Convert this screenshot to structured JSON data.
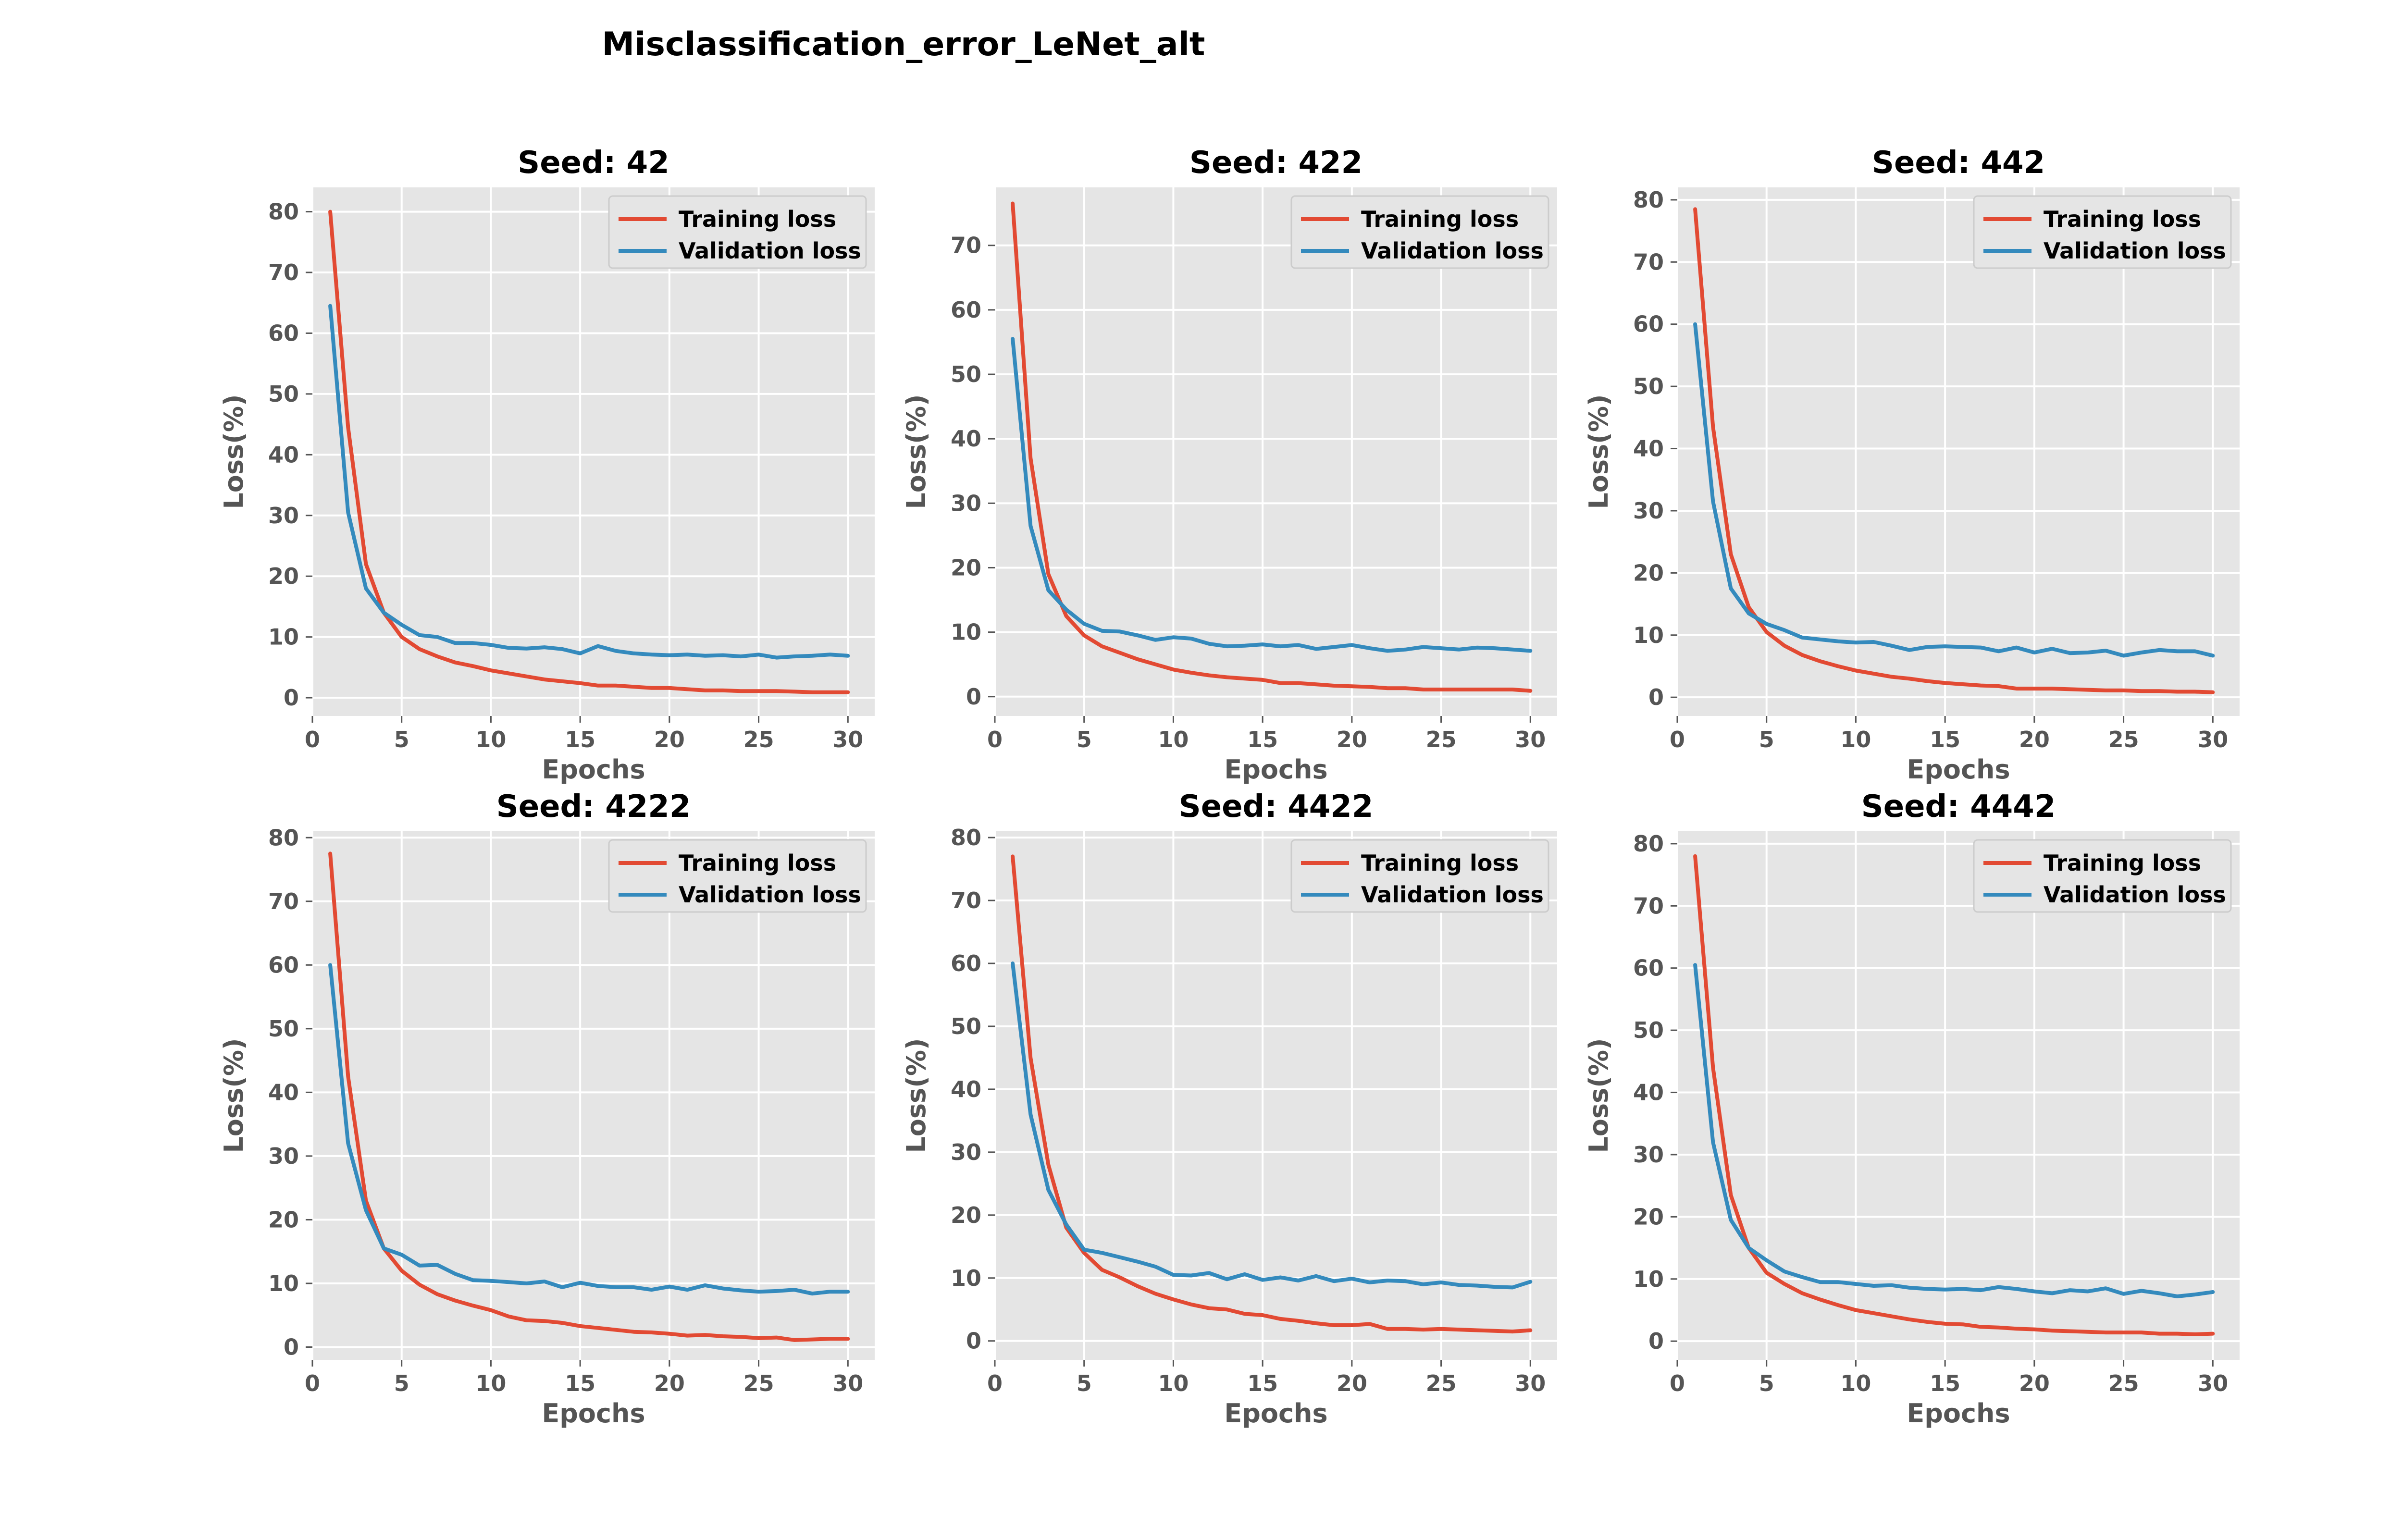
{
  "figure": {
    "title": "Misclassification_error_LeNet_alt"
  },
  "colors": {
    "training": "#E24A33",
    "validation": "#348ABD",
    "plot_background": "#E5E5E5",
    "grid": "#FFFFFF"
  },
  "chart_data": [
    {
      "type": "line",
      "title": "Seed: 42",
      "xlabel": "Epochs",
      "ylabel": "Loss(%)",
      "xlim": [
        0,
        31.5
      ],
      "ylim": [
        -3,
        84
      ],
      "xticks": [
        0,
        5,
        10,
        15,
        20,
        25,
        30
      ],
      "yticks": [
        0,
        10,
        20,
        30,
        40,
        50,
        60,
        70,
        80
      ],
      "grid": true,
      "legend_position": "top-right",
      "x": [
        1,
        2,
        3,
        4,
        5,
        6,
        7,
        8,
        9,
        10,
        11,
        12,
        13,
        14,
        15,
        16,
        17,
        18,
        19,
        20,
        21,
        22,
        23,
        24,
        25,
        26,
        27,
        28,
        29,
        30
      ],
      "series": [
        {
          "name": "Training loss",
          "values": [
            80,
            44.5,
            22,
            14,
            10,
            8,
            6.8,
            5.8,
            5.2,
            4.5,
            4,
            3.5,
            3,
            2.7,
            2.4,
            2,
            2,
            1.8,
            1.6,
            1.6,
            1.4,
            1.2,
            1.2,
            1.1,
            1.1,
            1.1,
            1,
            0.9,
            0.9,
            0.9
          ]
        },
        {
          "name": "Validation loss",
          "values": [
            64.5,
            30.5,
            18,
            14,
            12,
            10.3,
            10,
            9,
            9,
            8.7,
            8.2,
            8.1,
            8.3,
            8,
            7.3,
            8.5,
            7.7,
            7.3,
            7.1,
            7,
            7.1,
            6.9,
            7,
            6.8,
            7.1,
            6.6,
            6.8,
            6.9,
            7.1,
            6.9
          ]
        }
      ]
    },
    {
      "type": "line",
      "title": "Seed: 422",
      "xlabel": "Epochs",
      "ylabel": "Loss(%)",
      "xlim": [
        0,
        31.5
      ],
      "ylim": [
        -3,
        79
      ],
      "xticks": [
        0,
        5,
        10,
        15,
        20,
        25,
        30
      ],
      "yticks": [
        0,
        10,
        20,
        30,
        40,
        50,
        60,
        70
      ],
      "grid": true,
      "legend_position": "top-right",
      "x": [
        1,
        2,
        3,
        4,
        5,
        6,
        7,
        8,
        9,
        10,
        11,
        12,
        13,
        14,
        15,
        16,
        17,
        18,
        19,
        20,
        21,
        22,
        23,
        24,
        25,
        26,
        27,
        28,
        29,
        30
      ],
      "series": [
        {
          "name": "Training loss",
          "values": [
            76.5,
            37,
            19,
            12.5,
            9.5,
            7.8,
            6.8,
            5.8,
            5,
            4.2,
            3.7,
            3.3,
            3,
            2.8,
            2.6,
            2.1,
            2.1,
            1.9,
            1.7,
            1.6,
            1.5,
            1.3,
            1.3,
            1.1,
            1.1,
            1.1,
            1.1,
            1.1,
            1.1,
            0.9
          ]
        },
        {
          "name": "Validation loss",
          "values": [
            55.5,
            26.5,
            16.5,
            13.5,
            11.3,
            10.2,
            10.1,
            9.5,
            8.8,
            9.2,
            9,
            8.2,
            7.8,
            7.9,
            8.1,
            7.8,
            8,
            7.4,
            7.7,
            8,
            7.5,
            7.1,
            7.3,
            7.7,
            7.5,
            7.3,
            7.6,
            7.5,
            7.3,
            7.1
          ]
        }
      ]
    },
    {
      "type": "line",
      "title": "Seed: 442",
      "xlabel": "Epochs",
      "ylabel": "Loss(%)",
      "xlim": [
        0,
        31.5
      ],
      "ylim": [
        -3,
        82
      ],
      "xticks": [
        0,
        5,
        10,
        15,
        20,
        25,
        30
      ],
      "yticks": [
        0,
        10,
        20,
        30,
        40,
        50,
        60,
        70,
        80
      ],
      "grid": true,
      "legend_position": "top-right",
      "x": [
        1,
        2,
        3,
        4,
        5,
        6,
        7,
        8,
        9,
        10,
        11,
        12,
        13,
        14,
        15,
        16,
        17,
        18,
        19,
        20,
        21,
        22,
        23,
        24,
        25,
        26,
        27,
        28,
        29,
        30
      ],
      "series": [
        {
          "name": "Training loss",
          "values": [
            78.5,
            43.5,
            23,
            14.5,
            10.5,
            8.3,
            6.8,
            5.8,
            5,
            4.3,
            3.8,
            3.3,
            3,
            2.6,
            2.3,
            2.1,
            1.9,
            1.8,
            1.4,
            1.4,
            1.4,
            1.3,
            1.2,
            1.1,
            1.1,
            1,
            1,
            0.9,
            0.9,
            0.8
          ]
        },
        {
          "name": "Validation loss",
          "values": [
            60,
            31.5,
            17.5,
            13.5,
            11.8,
            10.8,
            9.6,
            9.3,
            9,
            8.8,
            8.9,
            8.3,
            7.6,
            8.1,
            8.2,
            8.1,
            8,
            7.4,
            8,
            7.2,
            7.8,
            7.1,
            7.2,
            7.5,
            6.7,
            7.2,
            7.6,
            7.4,
            7.4,
            6.7
          ]
        }
      ]
    },
    {
      "type": "line",
      "title": "Seed: 4222",
      "xlabel": "Epochs",
      "ylabel": "Loss(%)",
      "xlim": [
        0,
        31.5
      ],
      "ylim": [
        -2,
        81
      ],
      "xticks": [
        0,
        5,
        10,
        15,
        20,
        25,
        30
      ],
      "yticks": [
        0,
        10,
        20,
        30,
        40,
        50,
        60,
        70,
        80
      ],
      "grid": true,
      "legend_position": "top-right",
      "x": [
        1,
        2,
        3,
        4,
        5,
        6,
        7,
        8,
        9,
        10,
        11,
        12,
        13,
        14,
        15,
        16,
        17,
        18,
        19,
        20,
        21,
        22,
        23,
        24,
        25,
        26,
        27,
        28,
        29,
        30
      ],
      "series": [
        {
          "name": "Training loss",
          "values": [
            77.5,
            42.5,
            23,
            15.5,
            12,
            9.8,
            8.3,
            7.3,
            6.5,
            5.8,
            4.8,
            4.2,
            4.1,
            3.8,
            3.3,
            3,
            2.7,
            2.4,
            2.3,
            2.1,
            1.8,
            1.9,
            1.7,
            1.6,
            1.4,
            1.5,
            1.1,
            1.2,
            1.3,
            1.3
          ]
        },
        {
          "name": "Validation loss",
          "values": [
            60,
            32,
            21.5,
            15.5,
            14.5,
            12.8,
            12.9,
            11.5,
            10.5,
            10.4,
            10.2,
            10,
            10.3,
            9.4,
            10.1,
            9.6,
            9.4,
            9.4,
            9,
            9.5,
            9,
            9.7,
            9.2,
            8.9,
            8.7,
            8.8,
            9,
            8.4,
            8.7,
            8.7
          ]
        }
      ]
    },
    {
      "type": "line",
      "title": "Seed: 4422",
      "xlabel": "Epochs",
      "ylabel": "Loss(%)",
      "xlim": [
        0,
        31.5
      ],
      "ylim": [
        -3,
        81
      ],
      "xticks": [
        0,
        5,
        10,
        15,
        20,
        25,
        30
      ],
      "yticks": [
        0,
        10,
        20,
        30,
        40,
        50,
        60,
        70,
        80
      ],
      "grid": true,
      "legend_position": "top-right",
      "x": [
        1,
        2,
        3,
        4,
        5,
        6,
        7,
        8,
        9,
        10,
        11,
        12,
        13,
        14,
        15,
        16,
        17,
        18,
        19,
        20,
        21,
        22,
        23,
        24,
        25,
        26,
        27,
        28,
        29,
        30
      ],
      "series": [
        {
          "name": "Training loss",
          "values": [
            77,
            45,
            28,
            18,
            14,
            11.3,
            10.1,
            8.7,
            7.5,
            6.6,
            5.8,
            5.2,
            5,
            4.3,
            4.1,
            3.5,
            3.2,
            2.8,
            2.5,
            2.5,
            2.7,
            1.9,
            1.9,
            1.8,
            1.9,
            1.8,
            1.7,
            1.6,
            1.5,
            1.7
          ]
        },
        {
          "name": "Validation loss",
          "values": [
            60,
            36,
            24,
            18.5,
            14.5,
            14,
            13.3,
            12.6,
            11.8,
            10.5,
            10.4,
            10.8,
            9.8,
            10.6,
            9.7,
            10.1,
            9.6,
            10.3,
            9.5,
            9.9,
            9.3,
            9.6,
            9.5,
            9,
            9.3,
            8.9,
            8.8,
            8.6,
            8.5,
            9.4
          ]
        }
      ]
    },
    {
      "type": "line",
      "title": "Seed: 4442",
      "xlabel": "Epochs",
      "ylabel": "Loss(%)",
      "xlim": [
        0,
        31.5
      ],
      "ylim": [
        -3,
        82
      ],
      "xticks": [
        0,
        5,
        10,
        15,
        20,
        25,
        30
      ],
      "yticks": [
        0,
        10,
        20,
        30,
        40,
        50,
        60,
        70,
        80
      ],
      "grid": true,
      "legend_position": "top-right",
      "x": [
        1,
        2,
        3,
        4,
        5,
        6,
        7,
        8,
        9,
        10,
        11,
        12,
        13,
        14,
        15,
        16,
        17,
        18,
        19,
        20,
        21,
        22,
        23,
        24,
        25,
        26,
        27,
        28,
        29,
        30
      ],
      "series": [
        {
          "name": "Training loss",
          "values": [
            78,
            44,
            23.5,
            15,
            11,
            9.2,
            7.7,
            6.7,
            5.8,
            5,
            4.5,
            4,
            3.5,
            3.1,
            2.8,
            2.7,
            2.3,
            2.2,
            2,
            1.9,
            1.7,
            1.6,
            1.5,
            1.4,
            1.4,
            1.4,
            1.2,
            1.2,
            1.1,
            1.2
          ]
        },
        {
          "name": "Validation loss",
          "values": [
            60.5,
            32,
            19.5,
            15,
            13,
            11.2,
            10.3,
            9.5,
            9.5,
            9.2,
            8.9,
            9,
            8.6,
            8.4,
            8.3,
            8.4,
            8.2,
            8.7,
            8.4,
            8,
            7.7,
            8.2,
            8,
            8.5,
            7.6,
            8.1,
            7.7,
            7.2,
            7.5,
            7.9
          ]
        }
      ]
    }
  ]
}
